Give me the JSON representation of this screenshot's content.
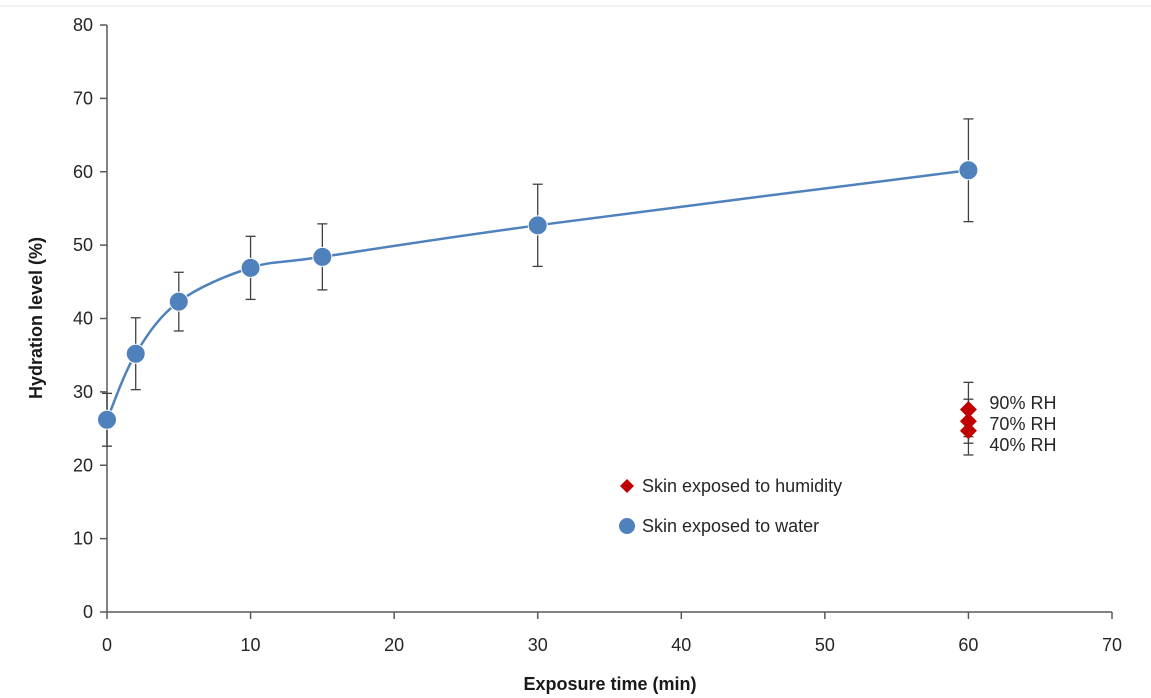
{
  "chart_data": {
    "type": "scatter",
    "xlabel": "Exposure time (min)",
    "ylabel": "Hydration level (%)",
    "xlim": [
      0,
      70
    ],
    "ylim": [
      0,
      80
    ],
    "x_ticks": [
      0,
      10,
      20,
      30,
      40,
      50,
      60,
      70
    ],
    "y_ticks": [
      0,
      10,
      20,
      30,
      40,
      50,
      60,
      70,
      80
    ],
    "grid": false,
    "legend_position": "center-right",
    "series": [
      {
        "name": "Skin exposed to water",
        "marker": "circle",
        "color": "#4f81bd",
        "smoothed_line": true,
        "points": [
          {
            "x": 0,
            "y": 26.2,
            "err": 3.6
          },
          {
            "x": 2,
            "y": 35.2,
            "err": 4.9
          },
          {
            "x": 5,
            "y": 42.3,
            "err": 4.0
          },
          {
            "x": 10,
            "y": 46.9,
            "err": 4.3
          },
          {
            "x": 15,
            "y": 48.4,
            "err": 4.5
          },
          {
            "x": 30,
            "y": 52.7,
            "err": 5.6
          },
          {
            "x": 60,
            "y": 60.2,
            "err": 7.0
          }
        ]
      },
      {
        "name": "Skin exposed to humidity",
        "marker": "diamond",
        "color": "#c00000",
        "smoothed_line": false,
        "points": [
          {
            "x": 60,
            "y": 27.6,
            "err": 3.7,
            "label": "90% RH"
          },
          {
            "x": 60,
            "y": 26.0,
            "err": 3.0,
            "label": "70% RH"
          },
          {
            "x": 60,
            "y": 24.7,
            "err": 3.3,
            "label": "40% RH"
          }
        ]
      }
    ],
    "legend": [
      {
        "label": "Skin exposed to humidity",
        "marker": "diamond",
        "color": "#c00000"
      },
      {
        "label": "Skin exposed to water",
        "marker": "circle",
        "color": "#4f81bd"
      }
    ]
  }
}
